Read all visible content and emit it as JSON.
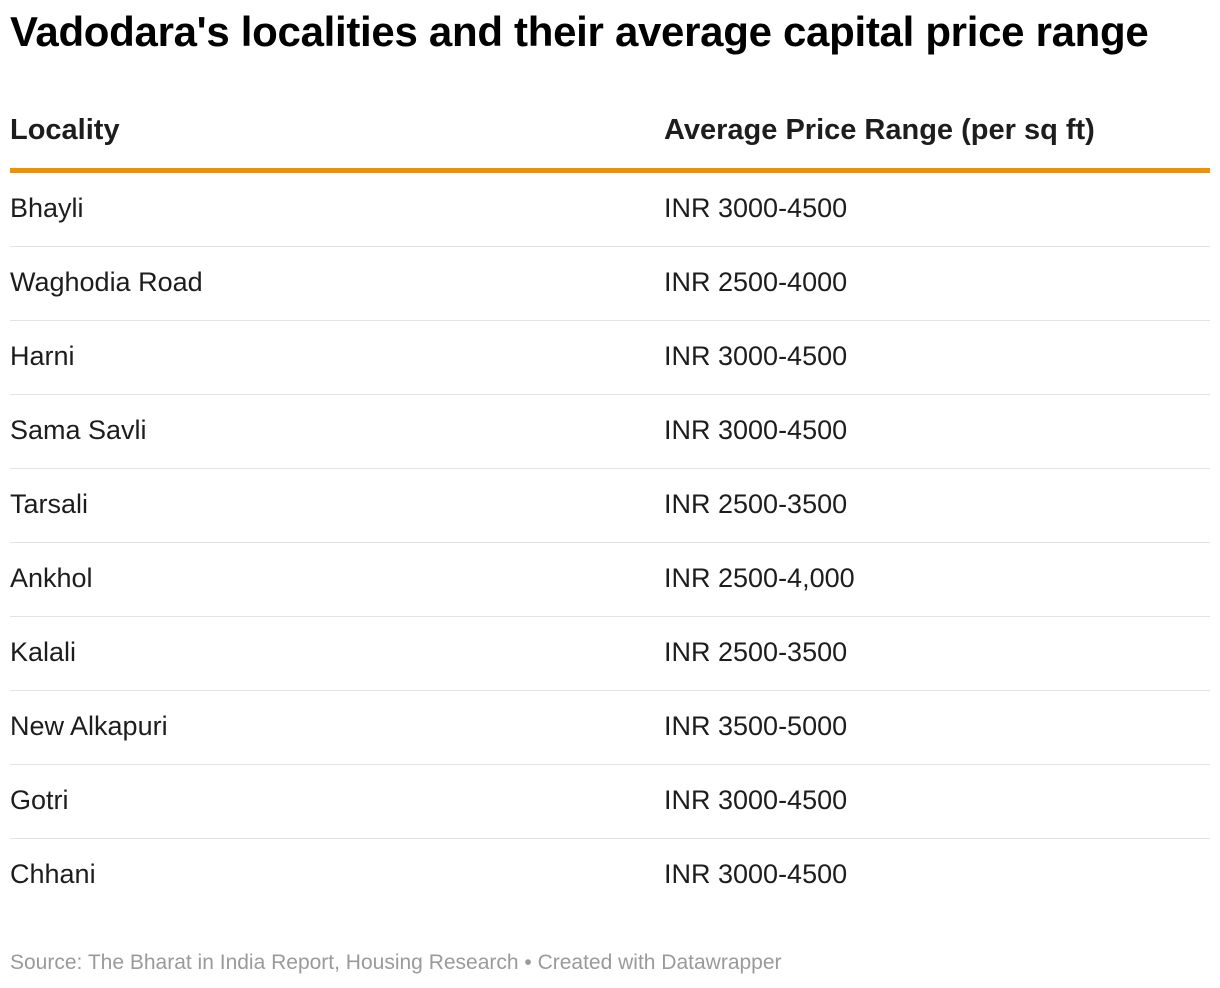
{
  "title": "Vadodara's localities and their average capital price range",
  "table": {
    "headers": [
      "Locality",
      "Average Price Range (per sq ft)"
    ],
    "rows": [
      [
        "Bhayli",
        "INR 3000-4500"
      ],
      [
        "Waghodia Road",
        "INR 2500-4000"
      ],
      [
        "Harni",
        "INR 3000-4500"
      ],
      [
        "Sama Savli",
        "INR 3000-4500"
      ],
      [
        "Tarsali",
        "INR 2500-3500"
      ],
      [
        "Ankhol",
        "INR 2500-4,000"
      ],
      [
        "Kalali",
        "INR 2500-3500"
      ],
      [
        "New Alkapuri",
        "INR 3500-5000"
      ],
      [
        "Gotri",
        "INR 3000-4500"
      ],
      [
        "Chhani",
        "INR 3000-4500"
      ]
    ]
  },
  "footer": "Source: The Bharat in India Report, Housing Research • Created with Datawrapper",
  "colors": {
    "header_rule": "#f29100",
    "row_divider": "#e3e3e3",
    "footer_text": "#9a9a9a"
  },
  "chart_data": {
    "type": "table",
    "title": "Vadodara's localities and their average capital price range",
    "columns": [
      "Locality",
      "Average Price Range (per sq ft)"
    ],
    "rows": [
      [
        "Bhayli",
        "INR 3000-4500"
      ],
      [
        "Waghodia Road",
        "INR 2500-4000"
      ],
      [
        "Harni",
        "INR 3000-4500"
      ],
      [
        "Sama Savli",
        "INR 3000-4500"
      ],
      [
        "Tarsali",
        "INR 2500-3500"
      ],
      [
        "Ankhol",
        "INR 2500-4,000"
      ],
      [
        "Kalali",
        "INR 2500-3500"
      ],
      [
        "New Alkapuri",
        "INR 3500-5000"
      ],
      [
        "Gotri",
        "INR 3000-4500"
      ],
      [
        "Chhani",
        "INR 3000-4500"
      ]
    ]
  }
}
